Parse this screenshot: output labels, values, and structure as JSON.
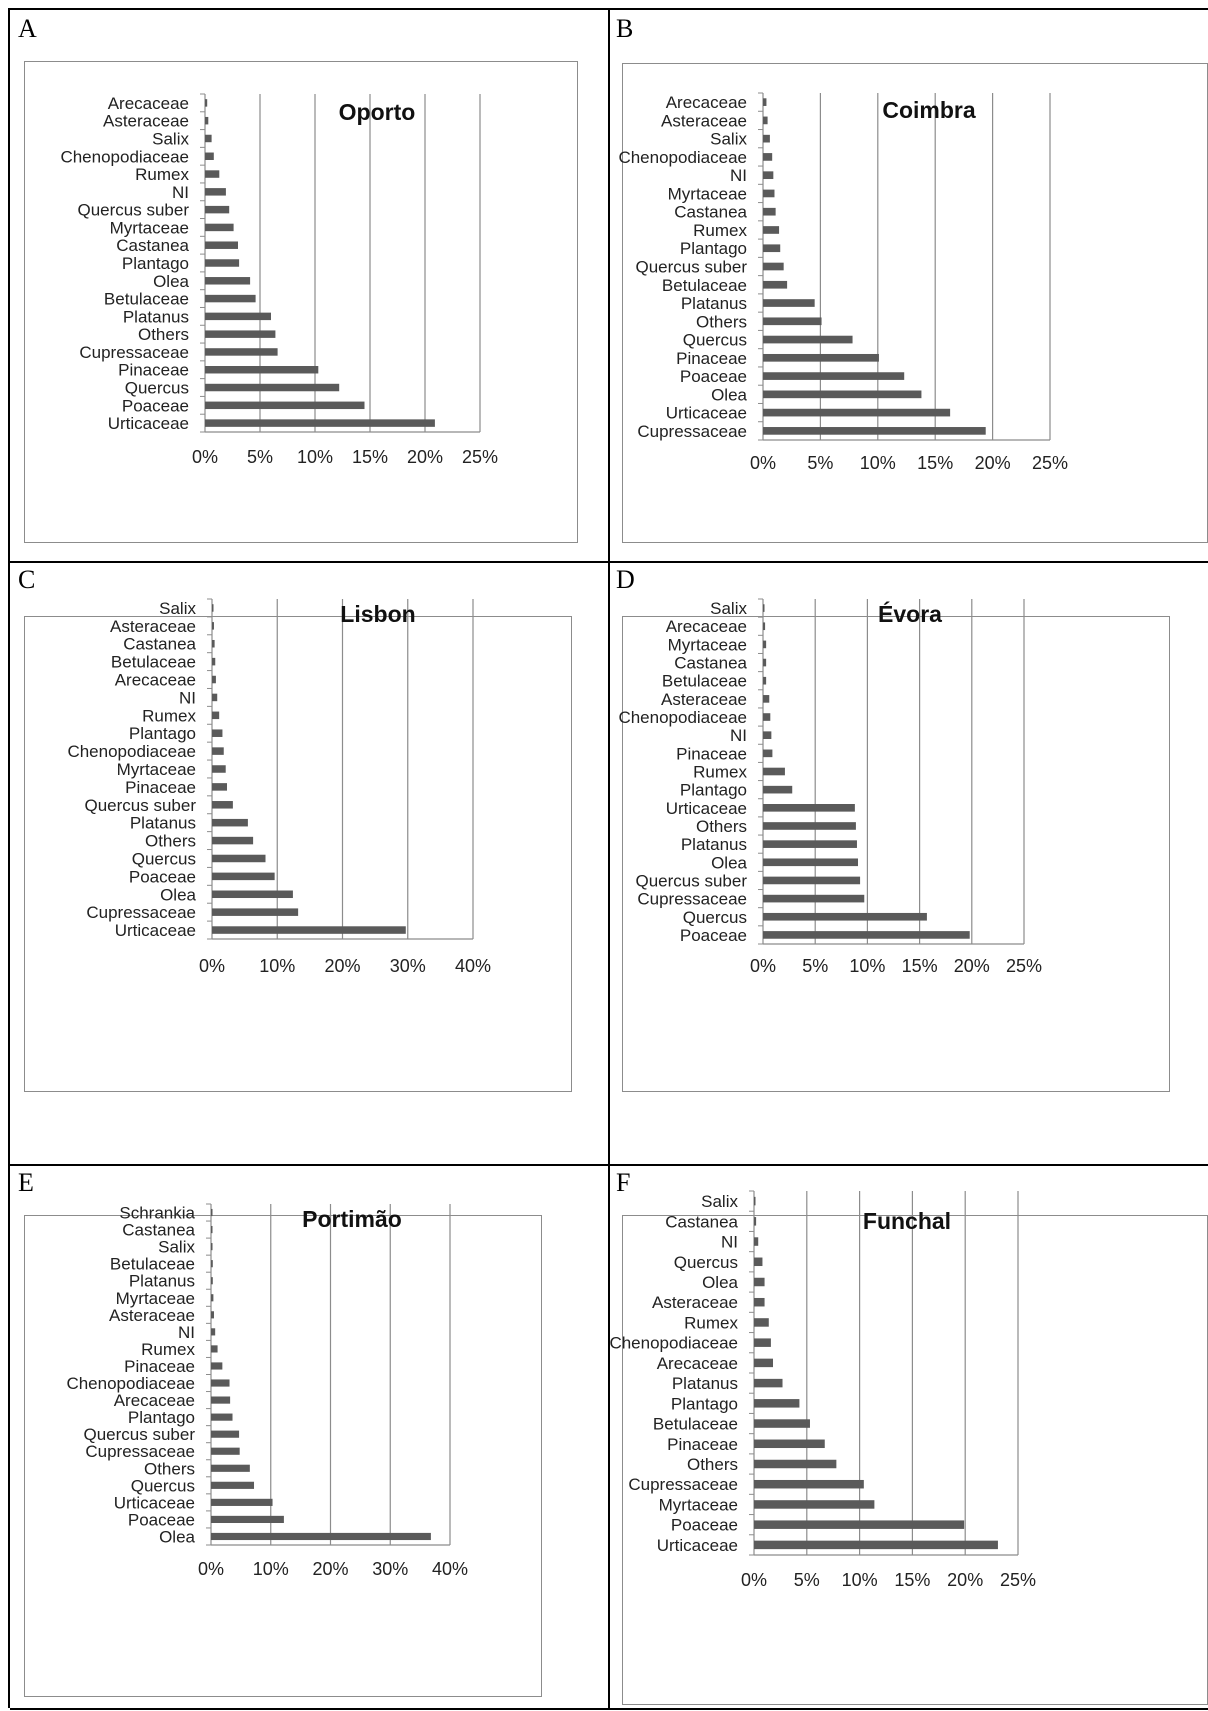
{
  "chart_data": [
    {
      "type": "bar",
      "panel": "A",
      "title": "Oporto",
      "categories": [
        "Arecaceae",
        "Asteraceae",
        "Salix",
        "Chenopodiaceae",
        "Rumex",
        "NI",
        "Quercus suber",
        "Myrtaceae",
        "Castanea",
        "Plantago",
        "Olea",
        "Betulaceae",
        "Platanus",
        "Others",
        "Cupressaceae",
        "Pinaceae",
        "Quercus",
        "Poaceae",
        "Urticaceae"
      ],
      "values": [
        0.2,
        0.3,
        0.6,
        0.8,
        1.3,
        1.9,
        2.2,
        2.6,
        3.0,
        3.1,
        4.1,
        4.6,
        6.0,
        6.4,
        6.6,
        10.3,
        12.2,
        14.5,
        20.9
      ],
      "xlim": [
        0,
        25
      ],
      "xticks": [
        "0%",
        "5%",
        "10%",
        "15%",
        "20%",
        "25%"
      ],
      "grid": true
    },
    {
      "type": "bar",
      "panel": "B",
      "title": "Coimbra",
      "categories": [
        "Arecaceae",
        "Asteraceae",
        "Salix",
        "Chenopodiaceae",
        "NI",
        "Myrtaceae",
        "Castanea",
        "Rumex",
        "Plantago",
        "Quercus suber",
        "Betulaceae",
        "Platanus",
        "Others",
        "Quercus",
        "Pinaceae",
        "Poaceae",
        "Olea",
        "Urticaceae",
        "Cupressaceae"
      ],
      "values": [
        0.3,
        0.4,
        0.6,
        0.8,
        0.9,
        1.0,
        1.1,
        1.4,
        1.5,
        1.8,
        2.1,
        4.5,
        5.1,
        7.8,
        10.1,
        12.3,
        13.8,
        16.3,
        19.4
      ],
      "xlim": [
        0,
        25
      ],
      "xticks": [
        "0%",
        "5%",
        "10%",
        "15%",
        "20%",
        "25%"
      ],
      "grid": true
    },
    {
      "type": "bar",
      "panel": "C",
      "title": "Lisbon",
      "categories": [
        "Salix",
        "Asteraceae",
        "Castanea",
        "Betulaceae",
        "Arecaceae",
        "NI",
        "Rumex",
        "Plantago",
        "Chenopodiaceae",
        "Myrtaceae",
        "Pinaceae",
        "Quercus suber",
        "Platanus",
        "Others",
        "Quercus",
        "Poaceae",
        "Olea",
        "Cupressaceae",
        "Urticaceae"
      ],
      "values": [
        0.2,
        0.3,
        0.4,
        0.5,
        0.6,
        0.8,
        1.1,
        1.6,
        1.8,
        2.1,
        2.3,
        3.2,
        5.5,
        6.3,
        8.2,
        9.6,
        12.4,
        13.2,
        29.7
      ],
      "xlim": [
        0,
        40
      ],
      "xticks": [
        "0%",
        "10%",
        "20%",
        "30%",
        "40%"
      ],
      "grid": true
    },
    {
      "type": "bar",
      "panel": "D",
      "title": "Évora",
      "categories": [
        "Salix",
        "Arecaceae",
        "Myrtaceae",
        "Castanea",
        "Betulaceae",
        "Asteraceae",
        "Chenopodiaceae",
        "NI",
        "Pinaceae",
        "Rumex",
        "Plantago",
        "Urticaceae",
        "Others",
        "Platanus",
        "Olea",
        "Quercus suber",
        "Cupressaceae",
        "Quercus",
        "Poaceae"
      ],
      "values": [
        0.1,
        0.2,
        0.3,
        0.3,
        0.3,
        0.6,
        0.7,
        0.8,
        0.9,
        2.1,
        2.8,
        8.8,
        8.9,
        9.0,
        9.1,
        9.3,
        9.7,
        15.7,
        19.8
      ],
      "xlim": [
        0,
        25
      ],
      "xticks": [
        "0%",
        "5%",
        "10%",
        "15%",
        "20%",
        "25%"
      ],
      "grid": true
    },
    {
      "type": "bar",
      "panel": "E",
      "title": "Portimão",
      "categories": [
        "Schrankia",
        "Castanea",
        "Salix",
        "Betulaceae",
        "Platanus",
        "Myrtaceae",
        "Asteraceae",
        "NI",
        "Rumex",
        "Pinaceae",
        "Chenopodiaceae",
        "Arecaceae",
        "Plantago",
        "Quercus suber",
        "Cupressaceae",
        "Others",
        "Quercus",
        "Urticaceae",
        "Poaceae",
        "Olea"
      ],
      "values": [
        0.1,
        0.2,
        0.2,
        0.3,
        0.3,
        0.4,
        0.5,
        0.7,
        1.1,
        1.9,
        3.1,
        3.2,
        3.6,
        4.7,
        4.8,
        6.5,
        7.2,
        10.3,
        12.2,
        36.8
      ],
      "xlim": [
        0,
        40
      ],
      "xticks": [
        "0%",
        "10%",
        "20%",
        "30%",
        "40%"
      ],
      "grid": true
    },
    {
      "type": "bar",
      "panel": "F",
      "title": "Funchal",
      "categories": [
        "Salix",
        "Castanea",
        "NI",
        "Quercus",
        "Olea",
        "Asteraceae",
        "Rumex",
        "Chenopodiaceae",
        "Arecaceae",
        "Platanus",
        "Plantago",
        "Betulaceae",
        "Pinaceae",
        "Others",
        "Cupressaceae",
        "Myrtaceae",
        "Poaceae",
        "Urticaceae"
      ],
      "values": [
        0.1,
        0.2,
        0.4,
        0.8,
        1.0,
        1.0,
        1.4,
        1.6,
        1.8,
        2.7,
        4.3,
        5.3,
        6.7,
        7.8,
        10.4,
        11.4,
        19.9,
        23.1
      ],
      "xlim": [
        0,
        25
      ],
      "xticks": [
        "0%",
        "5%",
        "10%",
        "15%",
        "20%",
        "25%"
      ],
      "grid": true
    }
  ]
}
